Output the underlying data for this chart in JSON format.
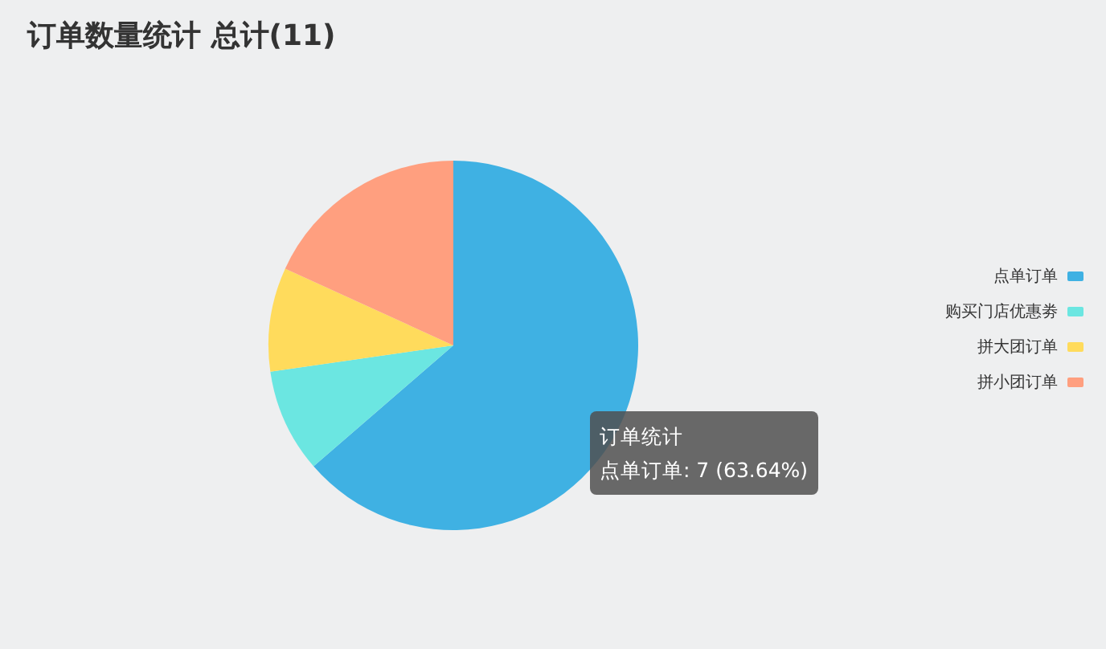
{
  "chart_data": {
    "type": "pie",
    "title": "订单数量统计 总计(11)",
    "categories": [
      "点单订单",
      "购买门店优惠劵",
      "拼大团订单",
      "拼小团订单"
    ],
    "values": [
      63.64,
      9.09,
      9.09,
      18.18
    ],
    "colors": [
      "#3fb1e3",
      "#6be6e1",
      "#ffdb5c",
      "#ff9f7f"
    ],
    "legend": "right",
    "annotations": [
      "订单统计",
      "点单订单: 7 (63.64%)"
    ]
  }
}
